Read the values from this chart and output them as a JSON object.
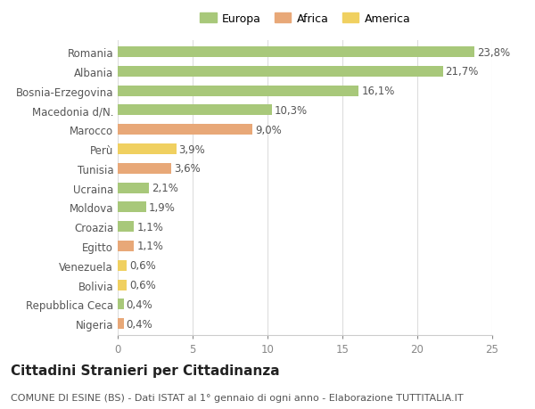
{
  "countries": [
    "Romania",
    "Albania",
    "Bosnia-Erzegovina",
    "Macedonia d/N.",
    "Marocco",
    "Perù",
    "Tunisia",
    "Ucraina",
    "Moldova",
    "Croazia",
    "Egitto",
    "Venezuela",
    "Bolivia",
    "Repubblica Ceca",
    "Nigeria"
  ],
  "values": [
    23.8,
    21.7,
    16.1,
    10.3,
    9.0,
    3.9,
    3.6,
    2.1,
    1.9,
    1.1,
    1.1,
    0.6,
    0.6,
    0.4,
    0.4
  ],
  "labels": [
    "23,8%",
    "21,7%",
    "16,1%",
    "10,3%",
    "9,0%",
    "3,9%",
    "3,6%",
    "2,1%",
    "1,9%",
    "1,1%",
    "1,1%",
    "0,6%",
    "0,6%",
    "0,4%",
    "0,4%"
  ],
  "continents": [
    "Europa",
    "Europa",
    "Europa",
    "Europa",
    "Africa",
    "America",
    "Africa",
    "Europa",
    "Europa",
    "Europa",
    "Africa",
    "America",
    "America",
    "Europa",
    "Africa"
  ],
  "colors": {
    "Europa": "#a8c87a",
    "Africa": "#e8a878",
    "America": "#f0d060"
  },
  "xlim": [
    0,
    25
  ],
  "xticks": [
    0,
    5,
    10,
    15,
    20,
    25
  ],
  "background_color": "#ffffff",
  "grid_color": "#dddddd",
  "title": "Cittadini Stranieri per Cittadinanza",
  "subtitle": "COMUNE DI ESINE (BS) - Dati ISTAT al 1° gennaio di ogni anno - Elaborazione TUTTITALIA.IT",
  "bar_height": 0.55,
  "label_fontsize": 8.5,
  "ytick_fontsize": 8.5,
  "xtick_fontsize": 8.5,
  "title_fontsize": 11,
  "subtitle_fontsize": 8,
  "legend_fontsize": 9
}
